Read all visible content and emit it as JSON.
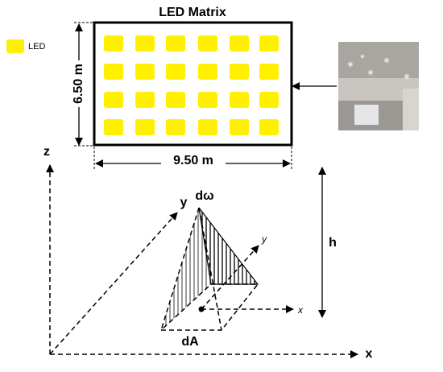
{
  "title": "LED Matrix",
  "legend": {
    "label": "LED"
  },
  "dimensions": {
    "height": "6.50 m",
    "width": "9.50 m"
  },
  "axes": {
    "z": "z",
    "y": "y",
    "x": "x"
  },
  "labels": {
    "solid_angle": "dω",
    "local_y": "y",
    "local_x": "x",
    "height": "h",
    "area": "dA"
  }
}
